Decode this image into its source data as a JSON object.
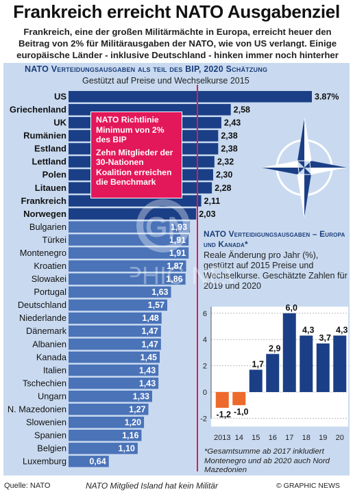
{
  "header": {
    "title": "Frankreich erreicht NATO Ausgabenziel",
    "subtitle": "Frankreich, eine der großen Militärmächte in Europa, erreicht heuer den Beitrag von 2% für Militärausgaben der NATO, wie von US verlangt. Einige europäische Länder - inklusive Deutschland - hinken immer noch hinterher"
  },
  "colors": {
    "panel": "#c9daf0",
    "bar_dark": "#1b3f86",
    "bar_light": "#4a73b8",
    "nato_line": "#e0185a",
    "callout": "#e3185b",
    "negative_bar": "#ee6a2c"
  },
  "callout": {
    "line1": "NATO Richtlinie Minimum von 2% des BIP",
    "line2": "Zehn Mitglieder der 30-Nationen Koalition erreichen die Benchmark"
  },
  "chart_data": [
    {
      "type": "bar",
      "orientation": "horizontal",
      "title": "NATO Verteidungsausgaben als teil des BIP,  2020 Schätzung",
      "subtitle": "Gestützt auf Preise und Wechselkurse 2015",
      "unit": "%",
      "reference_line": 2,
      "categories": [
        "US",
        "Griechenland",
        "UK",
        "Rumänien",
        "Estland",
        "Lettland",
        "Polen",
        "Litauen",
        "Frankreich",
        "Norwegen",
        "Bulgarien",
        "Türkei",
        "Montenegro",
        "Kroatien",
        "Slowakei",
        "Portugal",
        "Deutschland",
        "Niederlande",
        "Dänemark",
        "Albanien",
        "Kanada",
        "Italien",
        "Tschechien",
        "Ungarn",
        "N. Mazedonien",
        "Slowenien",
        "Spanien",
        "Belgien",
        "Luxemburg"
      ],
      "values": [
        3.87,
        2.58,
        2.43,
        2.38,
        2.38,
        2.32,
        2.3,
        2.28,
        2.11,
        2.03,
        1.93,
        1.91,
        1.91,
        1.87,
        1.86,
        1.63,
        1.57,
        1.48,
        1.47,
        1.47,
        1.45,
        1.43,
        1.43,
        1.33,
        1.27,
        1.2,
        1.16,
        1.1,
        0.64
      ],
      "value_labels": [
        "3.87%",
        "2,58",
        "2,43",
        "2,38",
        "2,38",
        "2,32",
        "2,30",
        "2,28",
        "2,11",
        "2,03",
        "1,93",
        "1,91",
        "1,91",
        "1,87",
        "1,86",
        "1,63",
        "1,57",
        "1,48",
        "1,47",
        "1,47",
        "1,45",
        "1,43",
        "1,43",
        "1,33",
        "1,27",
        "1,20",
        "1,16",
        "1,10",
        "0,64"
      ]
    },
    {
      "type": "bar",
      "title": "NATO Verteidigungsausgaben – Europa und Kanada*",
      "subtitle": "Reale Änderung pro Jahr (%), gestützt auf 2015 Preise und Wechselkurse. Geschätzte Zahlen für 2019 und 2020",
      "categories": [
        "2013",
        "14",
        "15",
        "16",
        "17",
        "18",
        "19",
        "20"
      ],
      "values": [
        -1.2,
        -1.0,
        1.7,
        2.9,
        6.0,
        4.3,
        3.7,
        4.3
      ],
      "value_labels": [
        "-1,2",
        "-1,0",
        "1,7",
        "2,9",
        "6,0",
        "4,3",
        "3,7",
        "4,3"
      ],
      "ylim": [
        -2,
        6
      ],
      "yticks": [
        "-2",
        "0",
        "2",
        "4",
        "6"
      ],
      "note": "*Gesamtsumme ab 2017 inkludiert Montenegro und ab 2020 auch Nord Mazedonien"
    }
  ],
  "footer": {
    "source": "Quelle: NATO",
    "note": "NATO Mitglied Island hat kein Militär",
    "credit": "© GRAPHIC NEWS"
  },
  "watermark": {
    "text": "GRAPHIC NEWS",
    "short": "GN"
  }
}
